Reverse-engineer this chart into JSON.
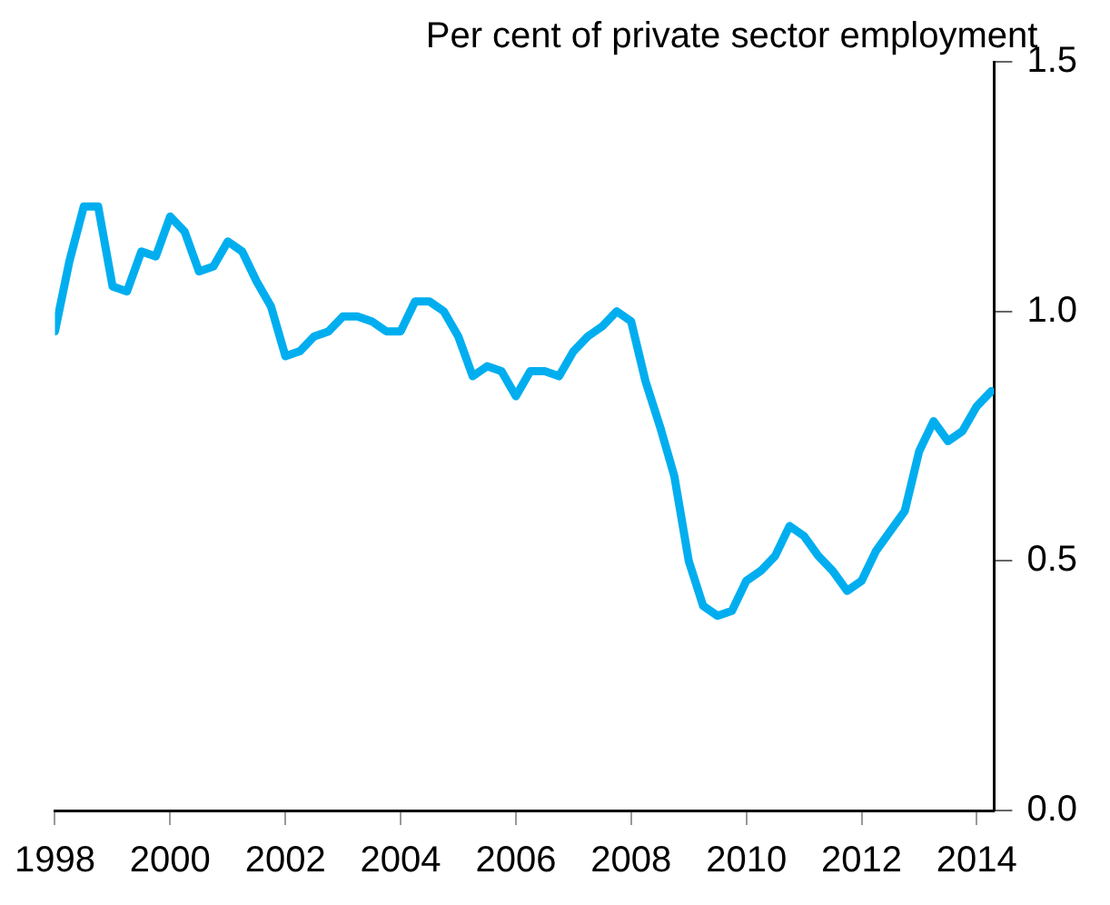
{
  "chart_data": {
    "type": "line",
    "ylabel": "Per cent of private sector employment",
    "x": [
      1998,
      1998.25,
      1998.5,
      1998.75,
      1999,
      1999.25,
      1999.5,
      1999.75,
      2000,
      2000.25,
      2000.5,
      2000.75,
      2001,
      2001.25,
      2001.5,
      2001.75,
      2002,
      2002.25,
      2002.5,
      2002.75,
      2003,
      2003.25,
      2003.5,
      2003.75,
      2004,
      2004.25,
      2004.5,
      2004.75,
      2005,
      2005.25,
      2005.5,
      2005.75,
      2006,
      2006.25,
      2006.5,
      2006.75,
      2007,
      2007.25,
      2007.5,
      2007.75,
      2008,
      2008.25,
      2008.5,
      2008.75,
      2009,
      2009.25,
      2009.5,
      2009.75,
      2010,
      2010.25,
      2010.5,
      2010.75,
      2011,
      2011.25,
      2011.5,
      2011.75,
      2012,
      2012.25,
      2012.5,
      2012.75,
      2013,
      2013.25,
      2013.5,
      2013.75,
      2014,
      2014.25
    ],
    "series": [
      {
        "color": "#00aeef",
        "values": [
          0.96,
          1.1,
          1.21,
          1.21,
          1.05,
          1.04,
          1.12,
          1.11,
          1.19,
          1.16,
          1.08,
          1.09,
          1.14,
          1.12,
          1.06,
          1.01,
          0.91,
          0.92,
          0.95,
          0.96,
          0.99,
          0.99,
          0.98,
          0.96,
          0.96,
          1.02,
          1.02,
          1.0,
          0.95,
          0.87,
          0.89,
          0.88,
          0.83,
          0.88,
          0.88,
          0.87,
          0.92,
          0.95,
          0.97,
          1.0,
          0.98,
          0.86,
          0.77,
          0.67,
          0.5,
          0.41,
          0.39,
          0.4,
          0.46,
          0.48,
          0.51,
          0.57,
          0.55,
          0.51,
          0.48,
          0.44,
          0.46,
          0.52,
          0.56,
          0.6,
          0.72,
          0.78,
          0.74,
          0.76,
          0.81,
          0.84
        ]
      }
    ],
    "xlim": [
      1998,
      2014.3
    ],
    "xticks": [
      1998,
      2000,
      2002,
      2004,
      2006,
      2008,
      2010,
      2012,
      2014
    ],
    "ylim": [
      0,
      1.5
    ],
    "yticks": [
      {
        "value": 0,
        "label": "0.0"
      },
      {
        "value": 0.5,
        "label": "0.5"
      },
      {
        "value": 1,
        "label": "1.0"
      },
      {
        "value": 1.5,
        "label": "1.5"
      }
    ],
    "grid": false,
    "legend": false,
    "marker": "none",
    "line_style": "solid"
  }
}
